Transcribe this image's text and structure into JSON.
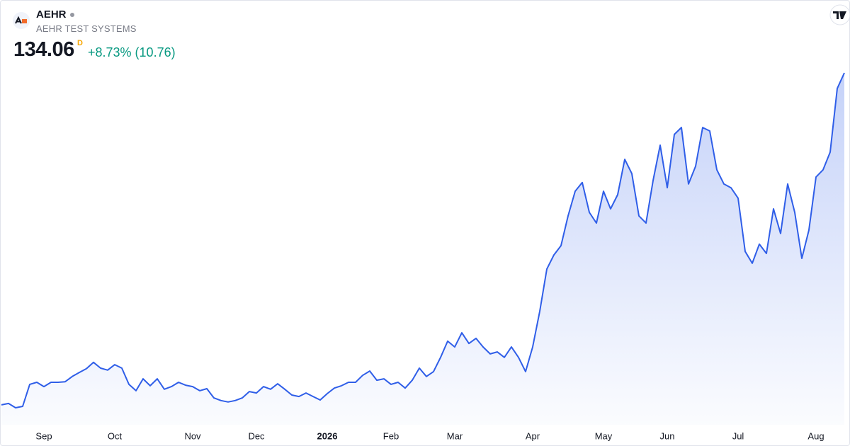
{
  "header": {
    "ticker": "AEHR",
    "name": "AEHR TEST SYSTEMS",
    "price": "134.06",
    "interval": "D",
    "change": "+8.73% (10.76)"
  },
  "chart_data": {
    "type": "area",
    "color": "#2f5ee8",
    "categories": [
      null,
      null,
      null,
      null,
      null,
      null,
      "Sep",
      null,
      null,
      null,
      null,
      null,
      null,
      null,
      null,
      null,
      "Oct",
      null,
      null,
      null,
      null,
      null,
      null,
      null,
      null,
      null,
      null,
      "Nov",
      null,
      null,
      null,
      null,
      null,
      null,
      null,
      null,
      "Dec",
      null,
      null,
      null,
      null,
      null,
      null,
      null,
      null,
      null,
      "2026",
      null,
      null,
      null,
      null,
      null,
      null,
      null,
      null,
      "Feb",
      null,
      null,
      null,
      null,
      null,
      null,
      null,
      null,
      "Mar",
      null,
      null,
      null,
      null,
      null,
      null,
      null,
      null,
      null,
      null,
      "Apr",
      null,
      null,
      null,
      null,
      null,
      null,
      null,
      null,
      null,
      "May",
      null,
      null,
      null,
      null,
      null,
      null,
      null,
      null,
      "Jun",
      null,
      null,
      null,
      null,
      null,
      null,
      null,
      null,
      null,
      "Jul",
      null,
      null,
      null,
      null,
      null,
      null,
      null,
      null,
      null,
      null,
      "Aug",
      null,
      null,
      null,
      null
    ],
    "values": [
      19.4,
      19.9,
      18.4,
      18.9,
      26.5,
      27.2,
      25.7,
      27.2,
      27.2,
      27.4,
      29.2,
      30.6,
      31.9,
      34.1,
      32.1,
      31.4,
      33.3,
      32.1,
      26.5,
      24.3,
      28.4,
      26.0,
      28.4,
      24.8,
      25.7,
      27.2,
      26.2,
      25.7,
      24.3,
      25.0,
      21.8,
      20.9,
      20.4,
      20.9,
      21.8,
      24.0,
      23.5,
      25.7,
      24.8,
      26.7,
      24.8,
      22.8,
      22.3,
      23.5,
      22.3,
      21.1,
      23.3,
      25.2,
      26.0,
      27.2,
      27.2,
      29.6,
      31.1,
      27.9,
      28.4,
      26.5,
      27.2,
      25.2,
      27.9,
      32.1,
      29.2,
      30.9,
      35.8,
      41.4,
      39.4,
      44.3,
      40.6,
      42.4,
      39.4,
      37.0,
      37.7,
      35.8,
      39.4,
      35.8,
      30.9,
      39.4,
      51.7,
      66.3,
      71.2,
      74.4,
      84.7,
      93.2,
      96.2,
      85.9,
      82.2,
      93.2,
      87.1,
      92.0,
      104.2,
      99.3,
      84.7,
      82.2,
      96.9,
      109.1,
      94.4,
      112.8,
      115.2,
      95.7,
      101.8,
      115.2,
      114.0,
      100.6,
      95.7,
      94.4,
      90.8,
      72.4,
      68.3,
      74.9,
      71.7,
      87.1,
      78.6,
      95.7,
      85.9,
      70.0,
      79.8,
      98.1,
      100.6,
      106.7,
      128.7,
      134.06
    ]
  }
}
